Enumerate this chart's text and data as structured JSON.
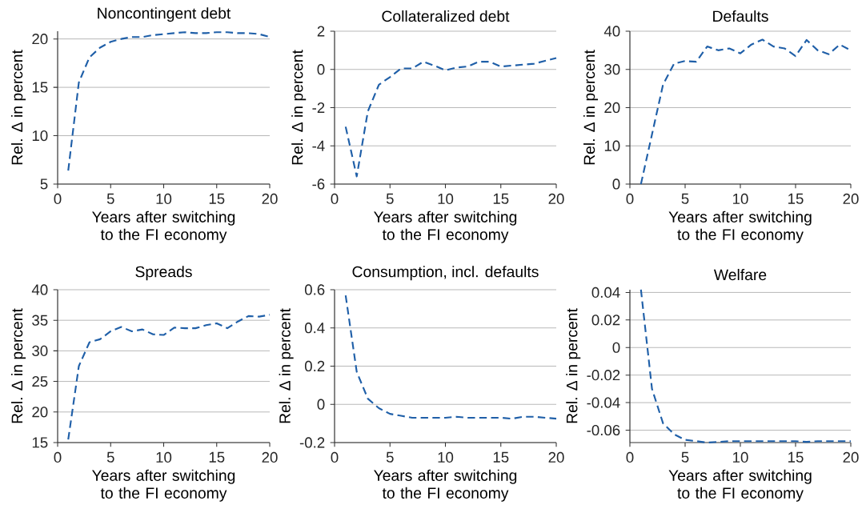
{
  "chart_data": [
    {
      "type": "line",
      "title": "Noncontingent debt",
      "xlabel": "Years after switching to the FI economy",
      "ylabel": "Rel. Δ in percent",
      "x": [
        1,
        2,
        3,
        4,
        5,
        6,
        7,
        8,
        9,
        10,
        11,
        12,
        13,
        14,
        15,
        16,
        17,
        18,
        19,
        20
      ],
      "series": [
        {
          "color": "#1f5fa8",
          "values": [
            6.4,
            15.5,
            18.1,
            19.1,
            19.7,
            20.0,
            20.2,
            20.2,
            20.4,
            20.5,
            20.6,
            20.7,
            20.6,
            20.6,
            20.7,
            20.7,
            20.6,
            20.6,
            20.5,
            20.2
          ]
        }
      ],
      "xlim": [
        0,
        20
      ],
      "xticks": [
        0,
        5,
        10,
        15,
        20
      ],
      "ylim": [
        5,
        20.8
      ],
      "yticks": [
        5,
        10,
        15,
        20
      ],
      "grid": "y",
      "line_style": "dashed",
      "marker": "none"
    },
    {
      "type": "line",
      "title": "Collateralized debt",
      "xlabel": "Years after switching to the FI economy",
      "ylabel": "Rel. Δ in percent",
      "x": [
        1,
        2,
        3,
        4,
        5,
        6,
        7,
        8,
        9,
        10,
        11,
        12,
        13,
        14,
        15,
        16,
        17,
        18,
        19,
        20
      ],
      "series": [
        {
          "color": "#1f5fa8",
          "values": [
            -3.0,
            -5.6,
            -2.2,
            -0.8,
            -0.4,
            0.05,
            0.05,
            0.4,
            0.2,
            -0.05,
            0.1,
            0.15,
            0.4,
            0.4,
            0.15,
            0.2,
            0.25,
            0.3,
            0.45,
            0.6
          ]
        }
      ],
      "xlim": [
        0,
        20
      ],
      "xticks": [
        0,
        5,
        10,
        15,
        20
      ],
      "ylim": [
        -6,
        2
      ],
      "yticks": [
        -6,
        -4,
        -2,
        0,
        2
      ],
      "grid": "y",
      "line_style": "dashed",
      "marker": "none"
    },
    {
      "type": "line",
      "title": "Defaults",
      "xlabel": "Years after switching to the FI economy",
      "ylabel": "Rel. Δ in percent",
      "x": [
        1,
        2,
        3,
        4,
        5,
        6,
        7,
        8,
        9,
        10,
        11,
        12,
        13,
        14,
        15,
        16,
        17,
        18,
        19,
        20
      ],
      "series": [
        {
          "color": "#1f5fa8",
          "values": [
            0,
            13,
            26,
            31.5,
            32.2,
            32,
            36,
            35,
            35.5,
            34.2,
            36.5,
            37.8,
            36,
            35.5,
            33.5,
            37.7,
            35,
            34,
            36.5,
            35
          ]
        }
      ],
      "xlim": [
        0,
        20
      ],
      "xticks": [
        0,
        5,
        10,
        15,
        20
      ],
      "ylim": [
        0,
        40
      ],
      "yticks": [
        0,
        10,
        20,
        30,
        40
      ],
      "grid": "y",
      "line_style": "dashed",
      "marker": "none"
    },
    {
      "type": "line",
      "title": "Spreads",
      "xlabel": "Years after switching to the FI economy",
      "ylabel": "Rel. Δ in percent",
      "x": [
        1,
        2,
        3,
        4,
        5,
        6,
        7,
        8,
        9,
        10,
        11,
        12,
        13,
        14,
        15,
        16,
        17,
        18,
        19,
        20
      ],
      "series": [
        {
          "color": "#1f5fa8",
          "values": [
            15.5,
            27.5,
            31.4,
            31.9,
            33.2,
            33.9,
            33.2,
            33.5,
            32.7,
            32.6,
            33.8,
            33.7,
            33.7,
            34.2,
            34.5,
            33.7,
            34.8,
            35.7,
            35.6,
            35.9
          ]
        }
      ],
      "xlim": [
        0,
        20
      ],
      "xticks": [
        0,
        5,
        10,
        15,
        20
      ],
      "ylim": [
        15,
        40
      ],
      "yticks": [
        15,
        20,
        25,
        30,
        35,
        40
      ],
      "grid": "y",
      "line_style": "dashed",
      "marker": "none"
    },
    {
      "type": "line",
      "title": "Consumption, incl. defaults",
      "xlabel": "Years after switching to the FI economy",
      "ylabel": "Rel. Δ in percent",
      "x": [
        1,
        2,
        3,
        4,
        5,
        6,
        7,
        8,
        9,
        10,
        11,
        12,
        13,
        14,
        15,
        16,
        17,
        18,
        19,
        20
      ],
      "series": [
        {
          "color": "#1f5fa8",
          "values": [
            0.57,
            0.17,
            0.03,
            -0.02,
            -0.05,
            -0.06,
            -0.07,
            -0.07,
            -0.07,
            -0.07,
            -0.065,
            -0.07,
            -0.07,
            -0.07,
            -0.07,
            -0.075,
            -0.065,
            -0.065,
            -0.07,
            -0.075
          ]
        }
      ],
      "xlim": [
        0,
        20
      ],
      "xticks": [
        0,
        5,
        10,
        15,
        20
      ],
      "ylim": [
        -0.2,
        0.6
      ],
      "yticks": [
        -0.2,
        0,
        0.2,
        0.4,
        0.6
      ],
      "grid": "y",
      "line_style": "dashed",
      "marker": "none"
    },
    {
      "type": "line",
      "title": "Welfare",
      "xlabel": "Years after switching to the FI economy",
      "ylabel": "Rel. Δ in percent",
      "x": [
        1,
        2,
        3,
        4,
        5,
        6,
        7,
        8,
        9,
        10,
        11,
        12,
        13,
        14,
        15,
        16,
        17,
        18,
        19,
        20
      ],
      "series": [
        {
          "color": "#1f5fa8",
          "values": [
            0.042,
            -0.03,
            -0.055,
            -0.063,
            -0.067,
            -0.068,
            -0.069,
            -0.0685,
            -0.068,
            -0.068,
            -0.068,
            -0.068,
            -0.068,
            -0.068,
            -0.068,
            -0.0685,
            -0.068,
            -0.068,
            -0.068,
            -0.068
          ]
        }
      ],
      "xlim": [
        0,
        20
      ],
      "xticks": [
        0,
        5,
        10,
        15,
        20
      ],
      "ylim": [
        -0.069,
        0.042
      ],
      "yticks": [
        -0.06,
        -0.04,
        -0.02,
        0,
        0.02,
        0.04
      ],
      "grid": "y",
      "line_style": "dashed",
      "marker": "none"
    }
  ]
}
